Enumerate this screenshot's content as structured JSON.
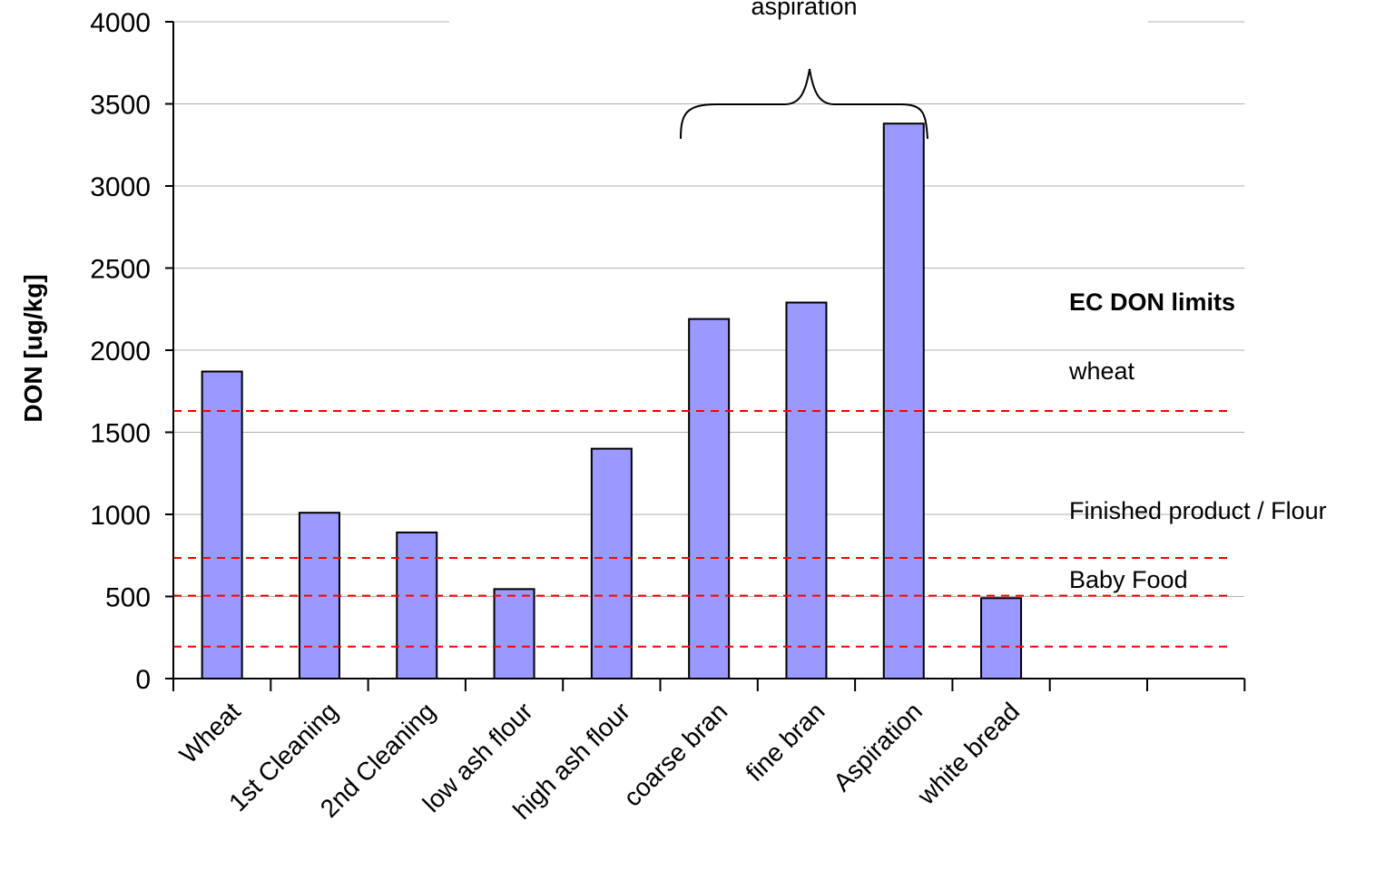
{
  "chart_data": {
    "type": "bar",
    "categories": [
      "Wheat",
      "1st Cleaning",
      "2nd Cleaning",
      "low ash flour",
      "high ash flour",
      "coarse bran",
      "fine bran",
      "Aspiration",
      "white bread"
    ],
    "values": [
      1870,
      1010,
      890,
      545,
      1400,
      2190,
      2290,
      3380,
      490
    ],
    "ylabel": "DON [ug/kg]",
    "xlabel": "",
    "ylim": [
      0,
      4000
    ],
    "yticks": [
      0,
      500,
      1000,
      1500,
      2000,
      2500,
      3000,
      3500,
      4000
    ],
    "grid": true,
    "bar_color": "#9999ff",
    "reference_lines": [
      {
        "value": 1630,
        "color": "#ff0000"
      },
      {
        "value": 735,
        "color": "#ff0000"
      },
      {
        "value": 505,
        "color": "#ff0000"
      },
      {
        "value": 195,
        "color": "#ff0000"
      }
    ],
    "annotations": {
      "brace_label": "aspiration",
      "legend_title": "EC DON limits",
      "limit_labels": [
        "wheat",
        "Finished product / Flour",
        "Baby Food"
      ]
    }
  }
}
